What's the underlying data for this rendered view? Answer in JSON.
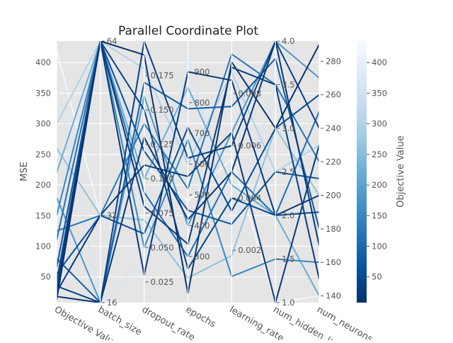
{
  "chart_data": {
    "type": "parallel_coordinates",
    "title": "Parallel Coordinate Plot",
    "axes": [
      {
        "name": "Objective Value",
        "label": "Objective Value",
        "range": [
          8,
          435
        ],
        "ticks": [
          {
            "v": 50,
            "t": "50"
          },
          {
            "v": 100,
            "t": "100"
          },
          {
            "v": 150,
            "t": "150"
          },
          {
            "v": 200,
            "t": "200"
          },
          {
            "v": 250,
            "t": "250"
          },
          {
            "v": 300,
            "t": "300"
          },
          {
            "v": 350,
            "t": "350"
          },
          {
            "v": 400,
            "t": "400"
          }
        ]
      },
      {
        "name": "batch_size",
        "label": "batch_size",
        "range": [
          16,
          64
        ],
        "ticks": [
          {
            "v": 16,
            "t": "16"
          },
          {
            "v": 32,
            "t": "32"
          },
          {
            "v": 64,
            "t": "64"
          }
        ]
      },
      {
        "name": "dropout_rate",
        "label": "dropout_rate",
        "range": [
          0.01,
          0.2
        ],
        "ticks": [
          {
            "v": 0.025,
            "t": "0.025"
          },
          {
            "v": 0.05,
            "t": "0.050"
          },
          {
            "v": 0.075,
            "t": "0.075"
          },
          {
            "v": 0.1,
            "t": "0.100"
          },
          {
            "v": 0.125,
            "t": "0.125"
          },
          {
            "v": 0.15,
            "t": "0.150"
          },
          {
            "v": 0.175,
            "t": "0.175"
          }
        ]
      },
      {
        "name": "epochs",
        "label": "epochs",
        "range": [
          150,
          1000
        ],
        "ticks": [
          {
            "v": 300,
            "t": "300"
          },
          {
            "v": 400,
            "t": "400"
          },
          {
            "v": 500,
            "t": "500"
          },
          {
            "v": 600,
            "t": "600"
          },
          {
            "v": 700,
            "t": "700"
          },
          {
            "v": 800,
            "t": "800"
          },
          {
            "v": 900,
            "t": "900"
          }
        ]
      },
      {
        "name": "learning_rate",
        "label": "learning_rate",
        "range": [
          0.0,
          0.01
        ],
        "ticks": [
          {
            "v": 0.002,
            "t": "0.002"
          },
          {
            "v": 0.004,
            "t": "0.004"
          },
          {
            "v": 0.006,
            "t": "0.006"
          },
          {
            "v": 0.008,
            "t": "0.008"
          }
        ]
      },
      {
        "name": "num_hidden_layers",
        "label": "num_hidden_layers",
        "range": [
          1,
          4
        ],
        "ticks": [
          {
            "v": 1.0,
            "t": "1.0"
          },
          {
            "v": 1.5,
            "t": "1.5"
          },
          {
            "v": 2.0,
            "t": "2.0"
          },
          {
            "v": 2.5,
            "t": "2.5"
          },
          {
            "v": 3.0,
            "t": "3.0"
          },
          {
            "v": 3.5,
            "t": "3.5"
          },
          {
            "v": 4.0,
            "t": "4.0"
          }
        ]
      },
      {
        "name": "num_neurons",
        "label": "num_neurons",
        "range": [
          136,
          292
        ],
        "ticks": [
          {
            "v": 140,
            "t": "140"
          },
          {
            "v": 160,
            "t": "160"
          },
          {
            "v": 180,
            "t": "180"
          },
          {
            "v": 200,
            "t": "200"
          },
          {
            "v": 220,
            "t": "220"
          },
          {
            "v": 240,
            "t": "240"
          },
          {
            "v": 260,
            "t": "260"
          },
          {
            "v": 280,
            "t": "280"
          }
        ]
      }
    ],
    "ylabel": "MSE",
    "series": [
      {
        "values": [
          12,
          64,
          0.19,
          180,
          0.0092,
          3.0,
          290
        ]
      },
      {
        "values": [
          18,
          16,
          0.13,
          420,
          0.005,
          4.0,
          170
        ]
      },
      {
        "values": [
          22,
          64,
          0.03,
          900,
          0.0085,
          2.0,
          200
        ]
      },
      {
        "values": [
          25,
          32,
          0.11,
          560,
          0.0065,
          1.0,
          230
        ]
      },
      {
        "values": [
          28,
          64,
          0.08,
          340,
          0.009,
          3.5,
          150
        ]
      },
      {
        "values": [
          35,
          16,
          0.2,
          620,
          0.006,
          4.0,
          240
        ]
      },
      {
        "values": [
          42,
          64,
          0.15,
          260,
          0.004,
          2.0,
          190
        ]
      },
      {
        "values": [
          55,
          32,
          0.06,
          720,
          0.0035,
          3.0,
          260
        ]
      },
      {
        "values": [
          65,
          64,
          0.12,
          450,
          0.003,
          2.5,
          210
        ]
      },
      {
        "values": [
          80,
          16,
          0.17,
          780,
          0.0075,
          3.8,
          180
        ]
      },
      {
        "values": [
          110,
          64,
          0.09,
          300,
          0.005,
          2.0,
          250
        ]
      },
      {
        "values": [
          125,
          32,
          0.14,
          520,
          0.0095,
          3.5,
          220
        ]
      },
      {
        "values": [
          150,
          64,
          0.05,
          680,
          0.001,
          1.5,
          160
        ]
      },
      {
        "values": [
          180,
          16,
          0.16,
          400,
          0.0065,
          4.0,
          270
        ]
      },
      {
        "values": [
          220,
          64,
          0.1,
          850,
          0.0045,
          2.0,
          140
        ]
      },
      {
        "values": [
          260,
          32,
          0.07,
          230,
          0.0018,
          3.0,
          200
        ]
      },
      {
        "values": [
          300,
          64,
          0.18,
          600,
          0.0088,
          2.5,
          230
        ]
      },
      {
        "values": [
          365,
          16,
          0.04,
          950,
          0.0025,
          3.5,
          170
        ]
      },
      {
        "values": [
          420,
          32,
          0.11,
          480,
          0.0055,
          1.0,
          140
        ]
      }
    ],
    "colorbar": {
      "label": "Objective Value",
      "range": [
        8,
        435
      ],
      "ticks": [
        {
          "v": 50,
          "t": "50"
        },
        {
          "v": 100,
          "t": "100"
        },
        {
          "v": 150,
          "t": "150"
        },
        {
          "v": 200,
          "t": "200"
        },
        {
          "v": 250,
          "t": "250"
        },
        {
          "v": 300,
          "t": "300"
        },
        {
          "v": 350,
          "t": "350"
        },
        {
          "v": 400,
          "t": "400"
        }
      ]
    },
    "colormap": [
      "#08306b",
      "#08519c",
      "#2171b5",
      "#4292c6",
      "#6baed6",
      "#9ecae1",
      "#c6dbef",
      "#deebf7",
      "#f7fbff"
    ],
    "grid": true,
    "background": "#e5e5e5"
  }
}
